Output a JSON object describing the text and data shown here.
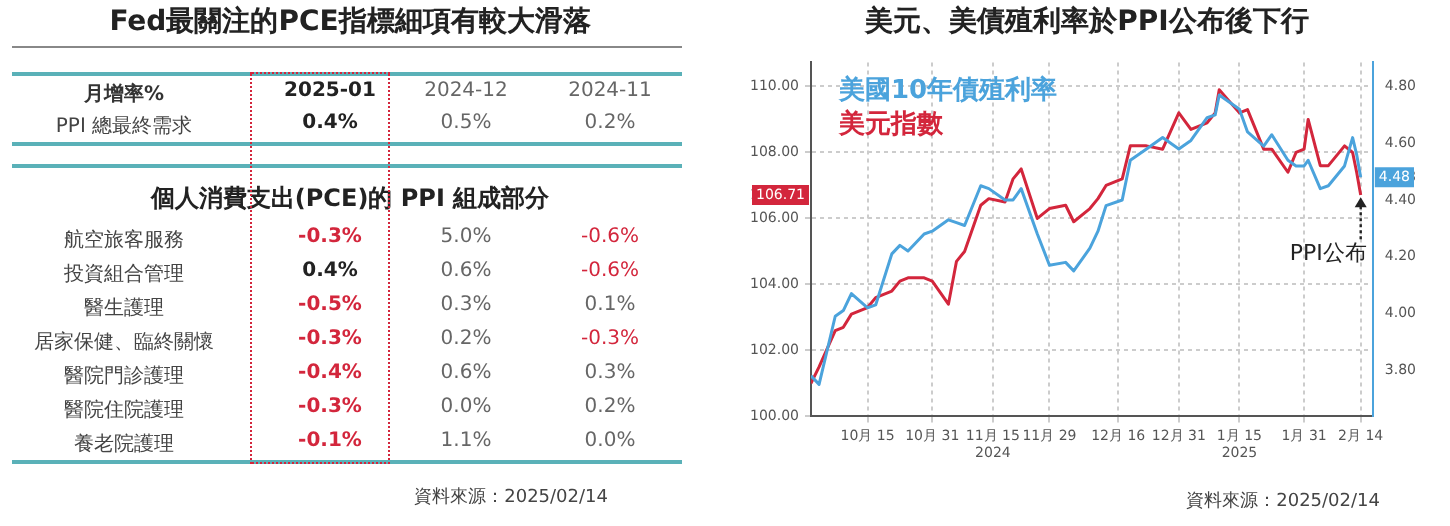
{
  "chart_data": [
    {
      "type": "heatmap",
      "title": "Fed最關注的PCE指標細項有較大滑落",
      "ylabel": "月增率%",
      "categories": [
        "2025-01",
        "2024-12",
        "2024-11"
      ],
      "y_categories": [
        "PPI 總最終需求"
      ],
      "cells": [
        [
          0.4,
          0.5,
          0.2
        ]
      ],
      "cell_labels": [
        [
          "0.4%",
          "0.5%",
          "0.2%"
        ]
      ]
    },
    {
      "type": "heatmap",
      "title": "個人消費支出(PCE)的 PPI 組成部分",
      "categories": [
        null,
        null,
        null
      ],
      "y_categories": [
        "航空旅客服務",
        "投資組合管理",
        "醫生護理",
        "居家保健、臨終關懷",
        "醫院門診護理",
        "醫院住院護理",
        "養老院護理"
      ],
      "cells": [
        [
          -0.3,
          5.0,
          -0.6
        ],
        [
          0.4,
          0.6,
          -0.6
        ],
        [
          -0.5,
          0.3,
          0.1
        ],
        [
          -0.3,
          0.2,
          -0.3
        ],
        [
          -0.4,
          0.6,
          0.3
        ],
        [
          -0.3,
          0.0,
          0.2
        ],
        [
          -0.1,
          1.1,
          0.0
        ]
      ],
      "cell_labels": [
        [
          "-0.3%",
          "5.0%",
          "-0.6%"
        ],
        [
          "0.4%",
          "0.6%",
          "-0.6%"
        ],
        [
          "-0.5%",
          "0.3%",
          "0.1%"
        ],
        [
          "-0.3%",
          "0.2%",
          "-0.3%"
        ],
        [
          "-0.4%",
          "0.6%",
          "0.3%"
        ],
        [
          "-0.3%",
          "0.0%",
          "0.2%"
        ],
        [
          "-0.1%",
          "1.1%",
          "0.0%"
        ]
      ],
      "annotations": [
        "資料來源：2025/02/14"
      ]
    },
    {
      "type": "line",
      "title": "美元、美債殖利率於PPI公布後下行",
      "x": [
        "2024-10-01",
        "2024-10-03",
        "2024-10-07",
        "2024-10-09",
        "2024-10-11",
        "2024-10-15",
        "2024-10-17",
        "2024-10-21",
        "2024-10-23",
        "2024-10-25",
        "2024-10-29",
        "2024-10-31",
        "2024-11-04",
        "2024-11-06",
        "2024-11-08",
        "2024-11-12",
        "2024-11-14",
        "2024-11-18",
        "2024-11-20",
        "2024-11-22",
        "2024-11-26",
        "2024-11-29",
        "2024-12-03",
        "2024-12-05",
        "2024-12-09",
        "2024-12-11",
        "2024-12-13",
        "2024-12-17",
        "2024-12-19",
        "2024-12-23",
        "2024-12-27",
        "2024-12-31",
        "2025-01-03",
        "2025-01-07",
        "2025-01-09",
        "2025-01-10",
        "2025-01-15",
        "2025-01-17",
        "2025-01-21",
        "2025-01-23",
        "2025-01-27",
        "2025-01-29",
        "2025-01-31",
        "2025-02-01",
        "2025-02-04",
        "2025-02-06",
        "2025-02-10",
        "2025-02-12",
        "2025-02-13",
        "2025-02-14"
      ],
      "series": [
        {
          "name": "美國10年債殖利率",
          "color": "#4ba3dc",
          "axis": "y2",
          "values": [
            3.78,
            3.75,
            3.99,
            4.01,
            4.07,
            4.02,
            4.03,
            4.21,
            4.24,
            4.22,
            4.28,
            4.29,
            4.33,
            4.32,
            4.31,
            4.45,
            4.44,
            4.4,
            4.4,
            4.44,
            4.28,
            4.17,
            4.18,
            4.15,
            4.23,
            4.29,
            4.38,
            4.4,
            4.54,
            4.58,
            4.62,
            4.58,
            4.61,
            4.69,
            4.7,
            4.77,
            4.72,
            4.64,
            4.59,
            4.63,
            4.54,
            4.52,
            4.52,
            4.54,
            4.44,
            4.45,
            4.52,
            4.62,
            4.56,
            4.48
          ]
        },
        {
          "name": "美元指數",
          "color": "#d3263c",
          "values": [
            101.0,
            101.5,
            102.6,
            102.7,
            103.1,
            103.3,
            103.6,
            103.8,
            104.1,
            104.2,
            104.2,
            104.1,
            103.4,
            104.7,
            105.0,
            106.4,
            106.6,
            106.5,
            107.2,
            107.5,
            106.0,
            106.3,
            106.4,
            105.9,
            106.3,
            106.6,
            107.0,
            107.2,
            108.2,
            108.2,
            108.1,
            109.2,
            108.7,
            108.9,
            109.2,
            109.9,
            109.2,
            109.3,
            108.1,
            108.1,
            107.4,
            108.0,
            108.1,
            109.0,
            107.6,
            107.6,
            108.2,
            108.0,
            107.4,
            106.71
          ]
        }
      ],
      "xlim": [
        "2024-10-01",
        "2025-02-17"
      ],
      "xticks": [
        {
          "value": "2024-10-15",
          "label": "10月 15"
        },
        {
          "value": "2024-10-31",
          "label": "10月 31"
        },
        {
          "value": "2024-11-15",
          "label": "11月 15\n2024"
        },
        {
          "value": "2024-11-29",
          "label": "11月 29"
        },
        {
          "value": "2024-12-16",
          "label": "12月 16"
        },
        {
          "value": "2024-12-31",
          "label": "12月 31"
        },
        {
          "value": "2025-01-15",
          "label": "1月 15\n2025"
        },
        {
          "value": "2025-01-31",
          "label": "1月 31"
        },
        {
          "value": "2025-02-14",
          "label": "2月 14"
        }
      ],
      "ylim": [
        100,
        110.73
      ],
      "yticks": [
        {
          "value": 100,
          "label": "100.00"
        },
        {
          "value": 102,
          "label": "102.00"
        },
        {
          "value": 104,
          "label": "104.00"
        },
        {
          "value": 106,
          "label": "106.00"
        },
        {
          "value": 106.71,
          "label": "106.71"
        },
        {
          "value": 108,
          "label": "108.00"
        },
        {
          "value": 110,
          "label": "110.00"
        }
      ],
      "y2lim": [
        3.637,
        4.885
      ],
      "y2ticks": [
        {
          "value": 3.8,
          "label": "3.80"
        },
        {
          "value": 4.0,
          "label": "4.00"
        },
        {
          "value": 4.2,
          "label": "4.20"
        },
        {
          "value": 4.4,
          "label": "4.40"
        },
        {
          "value": 4.48,
          "label": "4.48"
        },
        {
          "value": 4.6,
          "label": "4.60"
        },
        {
          "value": 4.8,
          "label": "4.80"
        }
      ],
      "grid": true,
      "legend": "top left",
      "annotations": [
        {
          "text": "PPI公布",
          "x": "2025-02-14",
          "y": 106.7
        },
        "資料來源：2025/02/14"
      ]
    }
  ]
}
